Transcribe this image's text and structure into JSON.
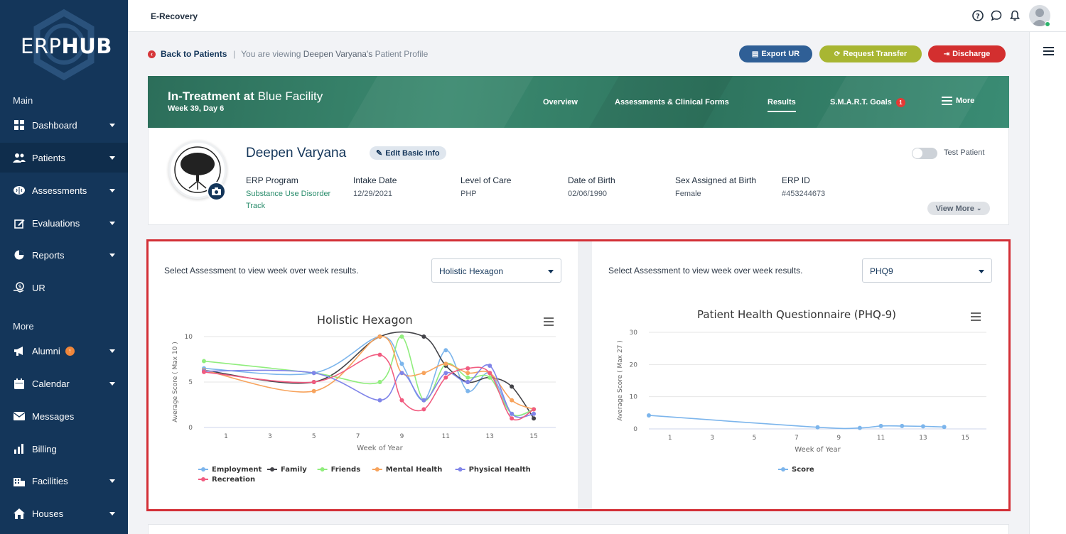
{
  "sidebar": {
    "logo_light": "ERP",
    "logo_bold": "HUB",
    "section_main": "Main",
    "section_more": "More",
    "items": [
      {
        "label": "Dashboard"
      },
      {
        "label": "Patients"
      },
      {
        "label": "Assessments"
      },
      {
        "label": "Evaluations"
      },
      {
        "label": "Reports"
      },
      {
        "label": "UR"
      },
      {
        "label": "Alumni"
      },
      {
        "label": "Calendar"
      },
      {
        "label": "Messages"
      },
      {
        "label": "Billing"
      },
      {
        "label": "Facilities"
      },
      {
        "label": "Houses"
      }
    ]
  },
  "topbar": {
    "title": "E-Recovery"
  },
  "breadcrumb": {
    "back": "Back to Patients",
    "separator": "|",
    "viewing_prefix": "You are viewing",
    "viewing_name": "Deepen Varyana's",
    "viewing_suffix": "Patient Profile"
  },
  "actions": {
    "export": "Export UR",
    "transfer": "Request Transfer",
    "discharge": "Discharge"
  },
  "header": {
    "status_bold": "In-Treatment at",
    "facility": "Blue Facility",
    "week": "Week 39, Day 6",
    "tabs": [
      "Overview",
      "Assessments & Clinical Forms",
      "Results",
      "S.M.A.R.T. Goals",
      "More"
    ],
    "goals_badge": "1"
  },
  "profile": {
    "name": "Deepen Varyana",
    "edit_label": "Edit Basic Info",
    "test_patient_label": "Test Patient",
    "view_more": "View More",
    "fields": [
      {
        "label": "ERP Program",
        "value": "Substance Use Disorder Track"
      },
      {
        "label": "Intake Date",
        "value": "12/29/2021"
      },
      {
        "label": "Level of Care",
        "value": "PHP"
      },
      {
        "label": "Date of Birth",
        "value": "02/06/1990"
      },
      {
        "label": "Sex Assigned at Birth",
        "value": "Female"
      },
      {
        "label": "ERP ID",
        "value": "#453244673"
      }
    ]
  },
  "charts_ui": {
    "select_prompt": "Select Assessment to view week over week results.",
    "left_selected": "Holistic Hexagon",
    "right_selected": "PHQ9"
  },
  "chart_data": [
    {
      "type": "line",
      "title": "Holistic Hexagon",
      "xlabel": "Week of Year",
      "ylabel": "Average Score ( Max 10 )",
      "xlim": [
        0,
        16
      ],
      "ylim": [
        0,
        10
      ],
      "x_ticks": [
        1,
        3,
        5,
        7,
        9,
        11,
        13,
        15
      ],
      "y_ticks": [
        0,
        5,
        10
      ],
      "legend": "bottom",
      "series": [
        {
          "name": "Employment",
          "color": "#7cb5ec",
          "points": [
            [
              0,
              6.5
            ],
            [
              5,
              6
            ],
            [
              8,
              10
            ],
            [
              9,
              7
            ],
            [
              10,
              3
            ],
            [
              11,
              8.5
            ],
            [
              12,
              4
            ],
            [
              13,
              6
            ],
            [
              14,
              1.5
            ],
            [
              15,
              2
            ]
          ]
        },
        {
          "name": "Family",
          "color": "#434348",
          "points": [
            [
              0,
              6.3
            ],
            [
              5,
              5
            ],
            [
              8,
              10
            ],
            [
              10,
              10
            ],
            [
              11,
              6.8
            ],
            [
              12,
              5
            ],
            [
              13,
              5.5
            ],
            [
              14,
              4.5
            ],
            [
              15,
              1
            ]
          ]
        },
        {
          "name": "Friends",
          "color": "#90ed7d",
          "points": [
            [
              0,
              7.3
            ],
            [
              5,
              6
            ],
            [
              8,
              5
            ],
            [
              9,
              10
            ],
            [
              10,
              3
            ],
            [
              11,
              7
            ],
            [
              12,
              5.5
            ],
            [
              13,
              5.5
            ],
            [
              14,
              1.5
            ],
            [
              15,
              2
            ]
          ]
        },
        {
          "name": "Mental Health",
          "color": "#f7a35c",
          "points": [
            [
              0,
              6.3
            ],
            [
              5,
              4
            ],
            [
              8,
              10
            ],
            [
              9,
              6
            ],
            [
              10,
              6
            ],
            [
              11,
              7
            ],
            [
              12,
              6
            ],
            [
              13,
              6
            ],
            [
              14,
              3
            ],
            [
              15,
              2
            ]
          ]
        },
        {
          "name": "Physical Health",
          "color": "#8085e9",
          "points": [
            [
              0,
              6.2
            ],
            [
              5,
              6
            ],
            [
              8,
              3
            ],
            [
              9,
              6
            ],
            [
              10,
              3
            ],
            [
              11,
              6
            ],
            [
              12,
              5
            ],
            [
              13,
              6.8
            ],
            [
              14,
              1.5
            ],
            [
              15,
              1.5
            ]
          ]
        },
        {
          "name": "Recreation",
          "color": "#f15c80",
          "points": [
            [
              0,
              6.1
            ],
            [
              5,
              5
            ],
            [
              8,
              8
            ],
            [
              9,
              3
            ],
            [
              10,
              2
            ],
            [
              11,
              5.5
            ],
            [
              12,
              6.5
            ],
            [
              13,
              6
            ],
            [
              14,
              1
            ],
            [
              15,
              2
            ]
          ]
        }
      ]
    },
    {
      "type": "line",
      "title": "Patient Health Questionnaire (PHQ-9)",
      "xlabel": "Week of Year",
      "ylabel": "Average Score ( Max 27 )",
      "xlim": [
        0,
        16
      ],
      "ylim": [
        0,
        30
      ],
      "x_ticks": [
        1,
        3,
        5,
        7,
        9,
        11,
        13,
        15
      ],
      "y_ticks": [
        0,
        10,
        20,
        30
      ],
      "legend": "bottom",
      "series": [
        {
          "name": "Score",
          "color": "#7cb5ec",
          "points": [
            [
              0,
              4.2
            ],
            [
              8,
              0.5
            ],
            [
              10,
              0.3
            ],
            [
              11,
              0.9
            ],
            [
              12,
              0.9
            ],
            [
              13,
              0.8
            ],
            [
              14,
              0.6
            ]
          ]
        }
      ]
    }
  ],
  "colors": {
    "sidebar": "#14365a",
    "export": "#2f5f96",
    "transfer": "#a8b632",
    "discharge": "#d32f2f",
    "highlight_border": "#d32f36"
  }
}
